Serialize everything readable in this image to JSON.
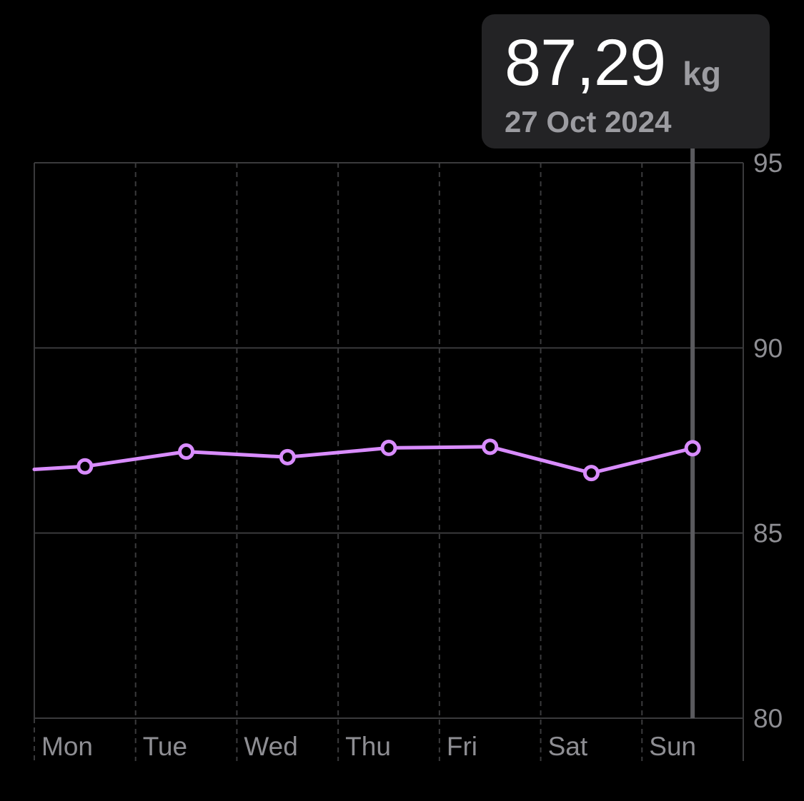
{
  "tooltip": {
    "value": "87,29",
    "unit": "kg",
    "date": "27 Oct 2024"
  },
  "chart_data": {
    "type": "line",
    "categories": [
      "Mon",
      "Tue",
      "Wed",
      "Thu",
      "Fri",
      "Sat",
      "Sun"
    ],
    "series": [
      {
        "values": [
          86.8,
          87.2,
          87.05,
          87.3,
          87.33,
          86.62,
          87.29
        ],
        "color": "#d98cff"
      }
    ],
    "previous_value": 86.72,
    "ylim": [
      80,
      95
    ],
    "yticks": [
      95,
      90,
      85,
      80
    ],
    "grid": true,
    "selected_category": "Sun",
    "title": "",
    "xlabel": "",
    "ylabel": ""
  },
  "colors": {
    "background": "#000000",
    "line": "#d98cff",
    "gridline": "#3a3a3c",
    "axis_text": "#8e8e93",
    "tooltip_bg": "#232325",
    "selection_rule": "#5a5a5e"
  }
}
